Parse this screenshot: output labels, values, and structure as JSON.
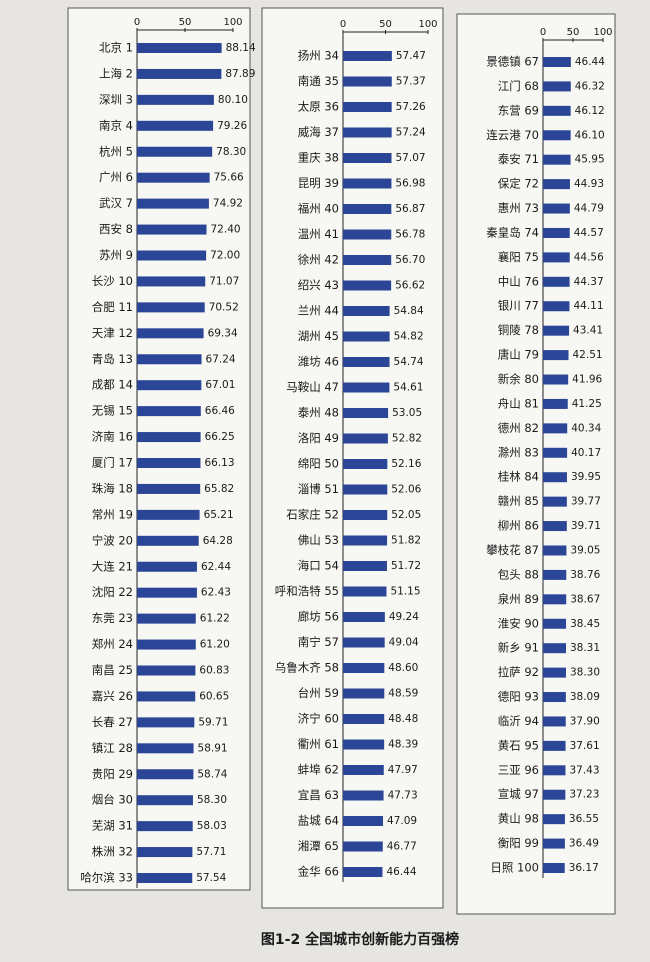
{
  "caption": "图1-2 全国城市创新能力百强榜",
  "chart_data": [
    {
      "type": "bar",
      "orientation": "horizontal",
      "color": "#2c4697",
      "xlim": [
        0,
        100
      ],
      "xticks": [
        0,
        50,
        100
      ],
      "categories": [
        "北京 1",
        "上海 2",
        "深圳 3",
        "南京 4",
        "杭州 5",
        "广州 6",
        "武汉 7",
        "西安 8",
        "苏州 9",
        "长沙 10",
        "合肥 11",
        "天津 12",
        "青岛 13",
        "成都 14",
        "无锡 15",
        "济南 16",
        "厦门 17",
        "珠海 18",
        "常州 19",
        "宁波 20",
        "大连 21",
        "沈阳 22",
        "东莞 23",
        "郑州 24",
        "南昌 25",
        "嘉兴 26",
        "长春 27",
        "镇江 28",
        "贵阳 29",
        "烟台 30",
        "芜湖 31",
        "株洲 32",
        "哈尔滨 33"
      ],
      "values": [
        88.14,
        87.89,
        80.1,
        79.26,
        78.3,
        75.66,
        74.92,
        72.4,
        72,
        71.07,
        70.52,
        69.34,
        67.24,
        67.01,
        66.46,
        66.25,
        66.13,
        65.82,
        65.21,
        64.28,
        62.44,
        62.43,
        61.22,
        61.2,
        60.83,
        60.65,
        59.71,
        58.91,
        58.74,
        58.3,
        58.03,
        57.71,
        57.54
      ],
      "value_labels": [
        "88.14",
        "87.89",
        "80.10",
        "79.26",
        "78.30",
        "75.66",
        "74.92",
        "72.40",
        "72.00",
        "71.07",
        "70.52",
        "69.34",
        "67.24",
        "67.01",
        "66.46",
        "66.25",
        "66.13",
        "65.82",
        "65.21",
        "64.28",
        "62.44",
        "62.43",
        "61.22",
        "61.20",
        "60.83",
        "60.65",
        "59.71",
        "58.91",
        "58.74",
        "58.30",
        "58.03",
        "57.71",
        "57.54"
      ]
    },
    {
      "type": "bar",
      "orientation": "horizontal",
      "color": "#2c4697",
      "xlim": [
        0,
        100
      ],
      "xticks": [
        0,
        50,
        100
      ],
      "categories": [
        "扬州 34",
        "南通 35",
        "太原 36",
        "威海 37",
        "重庆 38",
        "昆明 39",
        "福州 40",
        "温州 41",
        "徐州 42",
        "绍兴 43",
        "兰州 44",
        "湖州 45",
        "潍坊 46",
        "马鞍山 47",
        "泰州 48",
        "洛阳 49",
        "绵阳 50",
        "淄博 51",
        "石家庄 52",
        "佛山 53",
        "海口 54",
        "呼和浩特 55",
        "廊坊 56",
        "南宁 57",
        "乌鲁木齐 58",
        "台州 59",
        "济宁 60",
        "衢州 61",
        "蚌埠 62",
        "宜昌 63",
        "盐城 64",
        "湘潭 65",
        "金华 66"
      ],
      "values": [
        57.47,
        57.37,
        57.26,
        57.24,
        57.07,
        56.98,
        56.87,
        56.78,
        56.7,
        56.62,
        54.84,
        54.82,
        54.74,
        54.61,
        53.05,
        52.82,
        52.16,
        52.06,
        52.05,
        51.82,
        51.72,
        51.15,
        49.24,
        49.04,
        48.6,
        48.59,
        48.48,
        48.39,
        47.97,
        47.73,
        47.09,
        46.77,
        46.44
      ],
      "value_labels": [
        "57.47",
        "57.37",
        "57.26",
        "57.24",
        "57.07",
        "56.98",
        "56.87",
        "56.78",
        "56.70",
        "56.62",
        "54.84",
        "54.82",
        "54.74",
        "54.61",
        "53.05",
        "52.82",
        "52.16",
        "52.06",
        "52.05",
        "51.82",
        "51.72",
        "51.15",
        "49.24",
        "49.04",
        "48.60",
        "48.59",
        "48.48",
        "48.39",
        "47.97",
        "47.73",
        "47.09",
        "46.77",
        "46.44"
      ]
    },
    {
      "type": "bar",
      "orientation": "horizontal",
      "color": "#2c4697",
      "xlim": [
        0,
        100
      ],
      "xticks": [
        0,
        50,
        100
      ],
      "categories": [
        "景德镇 67",
        "江门 68",
        "东营 69",
        "连云港 70",
        "泰安 71",
        "保定 72",
        "惠州 73",
        "秦皇岛 74",
        "襄阳 75",
        "中山 76",
        "银川 77",
        "铜陵 78",
        "唐山 79",
        "新余 80",
        "舟山 81",
        "德州 82",
        "滁州 83",
        "桂林 84",
        "赣州 85",
        "柳州 86",
        "攀枝花 87",
        "包头 88",
        "泉州 89",
        "淮安 90",
        "新乡 91",
        "拉萨 92",
        "德阳 93",
        "临沂 94",
        "黄石 95",
        "三亚 96",
        "宣城 97",
        "黄山 98",
        "衡阳 99",
        "日照 100"
      ],
      "values": [
        46.44,
        46.32,
        46.12,
        46.1,
        45.95,
        44.93,
        44.79,
        44.57,
        44.56,
        44.37,
        44.11,
        43.41,
        42.51,
        41.96,
        41.25,
        40.34,
        40.17,
        39.95,
        39.77,
        39.71,
        39.05,
        38.76,
        38.67,
        38.45,
        38.31,
        38.3,
        38.09,
        37.9,
        37.61,
        37.43,
        37.23,
        36.55,
        36.49,
        36.17
      ],
      "value_labels": [
        "46.44",
        "46.32",
        "46.12",
        "46.10",
        "45.95",
        "44.93",
        "44.79",
        "44.57",
        "44.56",
        "44.37",
        "44.11",
        "43.41",
        "42.51",
        "41.96",
        "41.25",
        "40.34",
        "40.17",
        "39.95",
        "39.77",
        "39.71",
        "39.05",
        "38.76",
        "38.67",
        "38.45",
        "38.31",
        "38.30",
        "38.09",
        "37.90",
        "37.61",
        "37.43",
        "37.23",
        "36.55",
        "36.49",
        "36.17"
      ]
    }
  ]
}
